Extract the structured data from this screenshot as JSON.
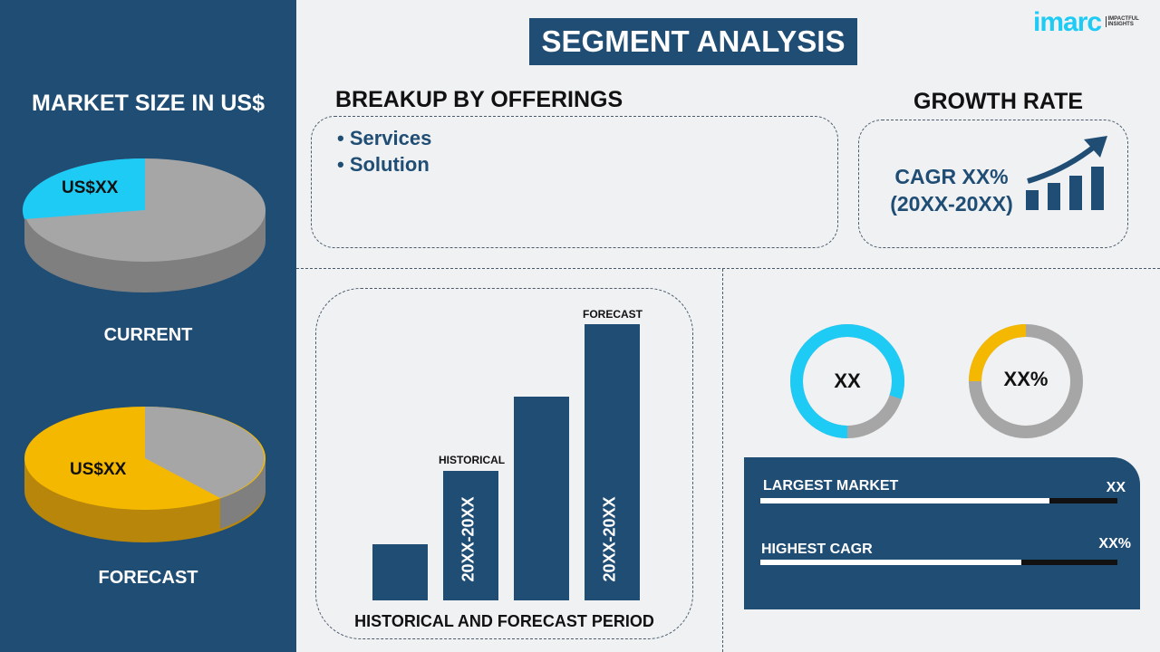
{
  "title": "SEGMENT ANALYSIS",
  "logo": {
    "text": "imarc",
    "tagline": "IMPACTFUL INSIGHTS"
  },
  "left": {
    "heading": "MARKET SIZE IN US$",
    "current": {
      "label": "CURRENT",
      "value": "US$XX"
    },
    "forecast": {
      "label": "FORECAST",
      "value": "US$XX"
    }
  },
  "colors": {
    "navy": "#204d74",
    "cyan": "#1ecbf5",
    "yellow": "#f5b800",
    "gray": "#a6a6a6"
  },
  "breakup": {
    "heading": "BREAKUP BY OFFERINGS",
    "items": [
      "• Services",
      "• Solution"
    ]
  },
  "growth": {
    "heading": "GROWTH RATE",
    "cagr": "CAGR XX%",
    "period": "(20XX-20XX)",
    "icon": "growth-chart-arrow-icon"
  },
  "period_chart": {
    "historical_label": "HISTORICAL",
    "forecast_label": "FORECAST",
    "historical_range": "20XX-20XX",
    "forecast_range": "20XX-20XX",
    "caption": "HISTORICAL AND FORECAST PERIOD"
  },
  "donuts": [
    {
      "label": "XX",
      "filled_fraction": 0.8
    },
    {
      "label": "XX%",
      "filled_fraction": 0.25
    }
  ],
  "kpis": [
    {
      "label": "LARGEST MARKET",
      "value": "XX",
      "fill_percent": 81
    },
    {
      "label": "HIGHEST CAGR",
      "value": "XX%",
      "fill_percent": 73
    }
  ]
}
